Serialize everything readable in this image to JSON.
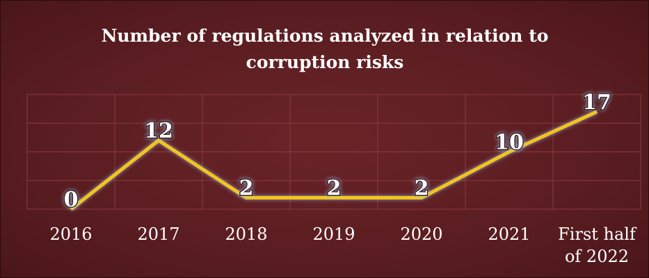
{
  "chart_data": {
    "type": "line",
    "title": "Number of regulations analyzed in relation to corruption risks",
    "categories": [
      "2016",
      "2017",
      "2018",
      "2019",
      "2020",
      "2021",
      "First half of 2022"
    ],
    "series": [
      {
        "name": "Regulations analyzed",
        "color": "#f2c41a",
        "values": [
          0,
          12,
          2,
          2,
          2,
          10,
          17
        ]
      }
    ],
    "ylim": [
      0,
      20
    ],
    "yticks": [
      0,
      5,
      10,
      15,
      20
    ],
    "grid": true
  }
}
